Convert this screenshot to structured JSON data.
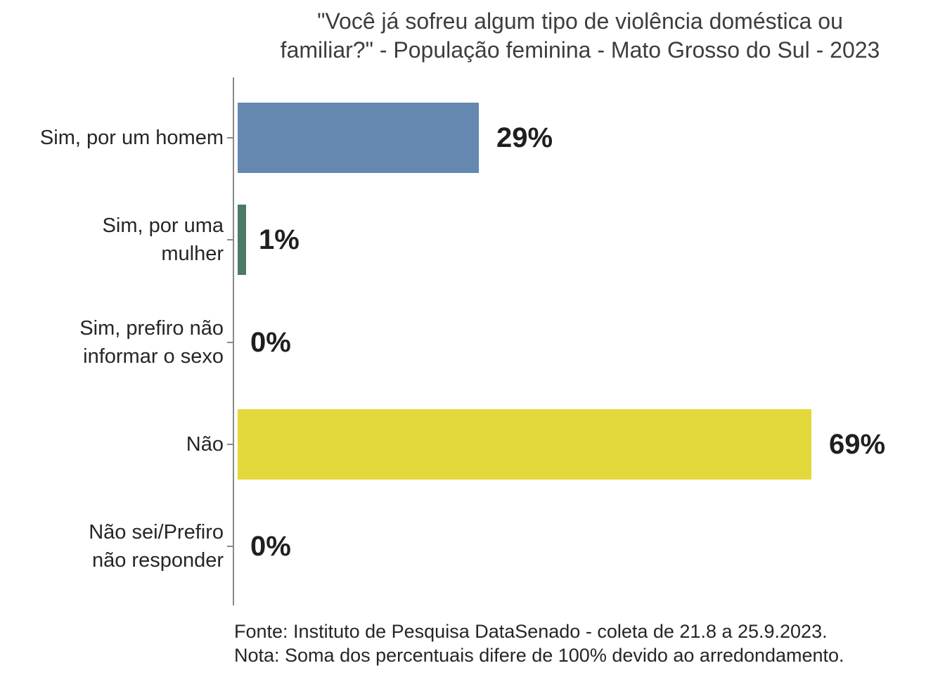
{
  "title": {
    "line1": "\"Você já sofreu algum tipo de violência doméstica ou",
    "line2": "familiar?\" - População feminina - Mato Grosso do Sul - 2023"
  },
  "chart_data": {
    "type": "bar",
    "orientation": "horizontal",
    "title": "\"Você já sofreu algum tipo de violência doméstica ou familiar?\" - População feminina - Mato Grosso do Sul - 2023",
    "categories": [
      "Sim, por um homem",
      "Sim, por uma mulher",
      "Sim, prefiro não informar o sexo",
      "Não",
      "Não sei/Prefiro não responder"
    ],
    "categories_display": [
      "Sim, por um homem",
      "Sim, por uma\nmulher",
      "Sim, prefiro não\ninformar o sexo",
      "Não",
      "Não sei/Prefiro\nnão responder"
    ],
    "values": [
      29,
      1,
      0,
      69,
      0
    ],
    "value_labels": [
      "29%",
      "1%",
      "0%",
      "69%",
      "0%"
    ],
    "bar_colors": [
      "#6488b0",
      "#4b7a66",
      "",
      "#e3d83c",
      ""
    ],
    "xlim": [
      0,
      100
    ],
    "grid": false,
    "legend": false,
    "axis_color": "#898989",
    "label_color": "#262626",
    "value_label_color": "#1f1f1f",
    "title_color": "#3d3d3d"
  },
  "footer": {
    "fonte": "Fonte: Instituto de Pesquisa DataSenado - coleta de 21.8 a 25.9.2023.",
    "nota": "Nota: Soma dos percentuais difere de 100% devido ao arredondamento."
  }
}
